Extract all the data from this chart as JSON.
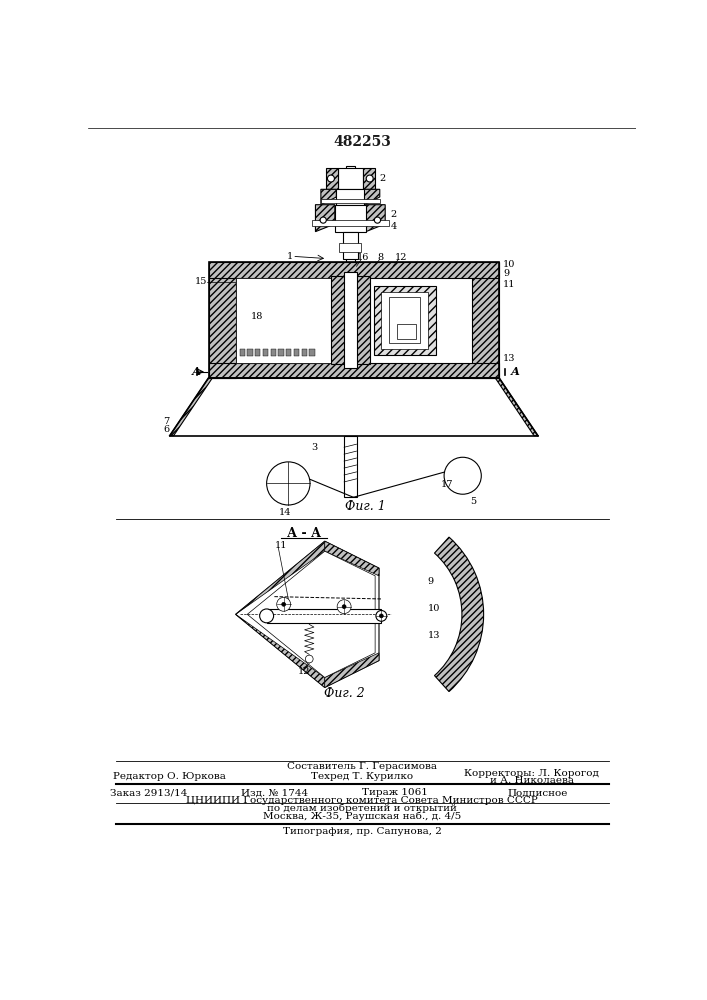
{
  "title_number": "482253",
  "fig1_label": "Фиг. 1",
  "fig2_label": "Фиг. 2",
  "section_label": "А - А",
  "footer": {
    "line0_center": "Составитель Г. Герасимова",
    "line1_left": "Редактор О. Юркова",
    "line1_center": "Техред Т. Курилко",
    "line1_right": "Корректоры: Л. Корогод",
    "line1_right2": "и А. Николаева",
    "line2_left": "Заказ 2913/14",
    "line2_c1": "Изд. № 1744",
    "line2_c2": "Тираж 1061",
    "line2_right": "Подписное",
    "line3": "ЦНИИПИ Государственного комитета Совета Министров СССР",
    "line4": "по делам изобретений и открытий",
    "line5": "Москва, Ж-35, Раушская наб., д. 4/5",
    "line6": "Типография, пр. Сапунова, 2"
  },
  "bg_color": "#ffffff",
  "line_color": "#1a1a1a"
}
